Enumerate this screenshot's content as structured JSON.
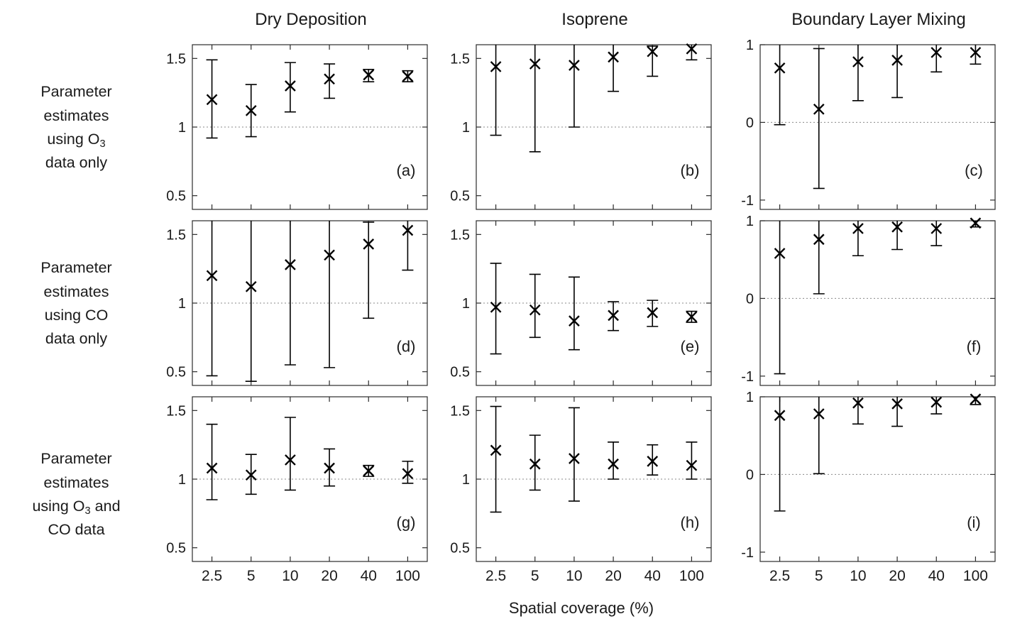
{
  "columns": [
    "Dry Deposition",
    "Isoprene",
    "Boundary Layer Mixing"
  ],
  "row_labels": [
    {
      "name": "o3-data-only",
      "lines": [
        [
          {
            "t": "Parameter"
          }
        ],
        [
          {
            "t": "estimates"
          }
        ],
        [
          {
            "t": "using O"
          },
          {
            "t": "3",
            "sub": true
          }
        ],
        [
          {
            "t": "data only"
          }
        ]
      ]
    },
    {
      "name": "co-data-only",
      "lines": [
        [
          {
            "t": "Parameter"
          }
        ],
        [
          {
            "t": "estimates"
          }
        ],
        [
          {
            "t": "using CO"
          }
        ],
        [
          {
            "t": "data only"
          }
        ]
      ]
    },
    {
      "name": "o3-and-co-data",
      "lines": [
        [
          {
            "t": "Parameter"
          }
        ],
        [
          {
            "t": "estimates"
          }
        ],
        [
          {
            "t": "using O"
          },
          {
            "t": "3",
            "sub": true
          },
          {
            "t": " and"
          }
        ],
        [
          {
            "t": "CO data"
          }
        ]
      ]
    }
  ],
  "axes": {
    "x_categories": [
      "2.5",
      "5",
      "10",
      "20",
      "40",
      "100"
    ],
    "xlabel": "Spatial coverage (%)",
    "y_ratio": {
      "ylim": [
        0.4,
        1.6
      ],
      "yticks": [
        0.5,
        1,
        1.5
      ],
      "yticklabels": [
        "0.5",
        "1",
        "1.5"
      ],
      "ref_line": 1
    },
    "y_corr": {
      "ylim": [
        -1.12,
        1
      ],
      "yticks": [
        -1,
        0,
        1
      ],
      "yticklabels": [
        "-1",
        "0",
        "1"
      ],
      "ref_line": 0
    }
  },
  "style": {
    "background": "#ffffff",
    "text_color": "#1a1a1a",
    "frame_color": "#2b2b2b",
    "line_color": "#000000",
    "ref_line_color": "#8a8a8a"
  },
  "chart_data": [
    {
      "type": "errorbar",
      "panel": "(a)",
      "column": "Dry Deposition",
      "row_condition": "O3 data only",
      "yaxis": "y_ratio",
      "show_x_labels": false,
      "values": [
        1.2,
        1.12,
        1.3,
        1.35,
        1.38,
        1.37
      ],
      "lower": [
        0.92,
        0.93,
        1.11,
        1.21,
        1.33,
        1.33
      ],
      "upper": [
        1.49,
        1.31,
        1.47,
        1.46,
        1.42,
        1.41
      ]
    },
    {
      "type": "errorbar",
      "panel": "(b)",
      "column": "Isoprene",
      "row_condition": "O3 data only",
      "yaxis": "y_ratio",
      "show_x_labels": false,
      "values": [
        1.44,
        1.46,
        1.45,
        1.51,
        1.55,
        1.57
      ],
      "lower": [
        0.94,
        0.82,
        1.0,
        1.26,
        1.37,
        1.49
      ],
      "upper": [
        1.65,
        1.65,
        1.65,
        1.64,
        1.59,
        1.62
      ]
    },
    {
      "type": "errorbar",
      "panel": "(c)",
      "column": "Boundary Layer Mixing",
      "row_condition": "O3 data only",
      "yaxis": "y_corr",
      "show_x_labels": false,
      "values": [
        0.7,
        0.17,
        0.78,
        0.8,
        0.9,
        0.9
      ],
      "lower": [
        -0.03,
        -0.85,
        0.28,
        0.32,
        0.65,
        0.75
      ],
      "upper": [
        1.0,
        0.95,
        1.0,
        1.0,
        1.0,
        1.0
      ]
    },
    {
      "type": "errorbar",
      "panel": "(d)",
      "column": "Dry Deposition",
      "row_condition": "CO data only",
      "yaxis": "y_ratio",
      "show_x_labels": false,
      "values": [
        1.2,
        1.12,
        1.28,
        1.35,
        1.43,
        1.53
      ],
      "lower": [
        0.47,
        0.43,
        0.55,
        0.53,
        0.89,
        1.24
      ],
      "upper": [
        1.65,
        1.65,
        1.65,
        1.65,
        1.59,
        1.65
      ]
    },
    {
      "type": "errorbar",
      "panel": "(e)",
      "column": "Isoprene",
      "row_condition": "CO data only",
      "yaxis": "y_ratio",
      "show_x_labels": false,
      "values": [
        0.97,
        0.95,
        0.87,
        0.91,
        0.93,
        0.9
      ],
      "lower": [
        0.63,
        0.75,
        0.66,
        0.8,
        0.83,
        0.86
      ],
      "upper": [
        1.29,
        1.21,
        1.19,
        1.01,
        1.02,
        0.94
      ]
    },
    {
      "type": "errorbar",
      "panel": "(f)",
      "column": "Boundary Layer Mixing",
      "row_condition": "CO data only",
      "yaxis": "y_corr",
      "show_x_labels": false,
      "values": [
        0.58,
        0.76,
        0.9,
        0.92,
        0.9,
        0.97
      ],
      "lower": [
        -0.97,
        0.06,
        0.55,
        0.63,
        0.68,
        0.92
      ],
      "upper": [
        1.0,
        1.0,
        1.0,
        1.0,
        1.0,
        1.0
      ]
    },
    {
      "type": "errorbar",
      "panel": "(g)",
      "column": "Dry Deposition",
      "row_condition": "O3 and CO data",
      "yaxis": "y_ratio",
      "show_x_labels": true,
      "values": [
        1.08,
        1.03,
        1.14,
        1.08,
        1.06,
        1.04
      ],
      "lower": [
        0.85,
        0.89,
        0.92,
        0.95,
        1.02,
        0.97
      ],
      "upper": [
        1.4,
        1.18,
        1.45,
        1.22,
        1.1,
        1.13
      ]
    },
    {
      "type": "errorbar",
      "panel": "(h)",
      "column": "Isoprene",
      "row_condition": "O3 and CO data",
      "yaxis": "y_ratio",
      "show_x_labels": true,
      "values": [
        1.21,
        1.11,
        1.15,
        1.11,
        1.13,
        1.1
      ],
      "lower": [
        0.76,
        0.92,
        0.84,
        1.0,
        1.03,
        1.0
      ],
      "upper": [
        1.53,
        1.32,
        1.52,
        1.27,
        1.25,
        1.27
      ]
    },
    {
      "type": "errorbar",
      "panel": "(i)",
      "column": "Boundary Layer Mixing",
      "row_condition": "O3 and CO data",
      "yaxis": "y_corr",
      "show_x_labels": true,
      "values": [
        0.76,
        0.78,
        0.92,
        0.91,
        0.93,
        0.97
      ],
      "lower": [
        -0.47,
        0.01,
        0.65,
        0.62,
        0.78,
        0.9
      ],
      "upper": [
        1.0,
        1.0,
        1.0,
        1.0,
        1.0,
        1.0
      ]
    }
  ]
}
